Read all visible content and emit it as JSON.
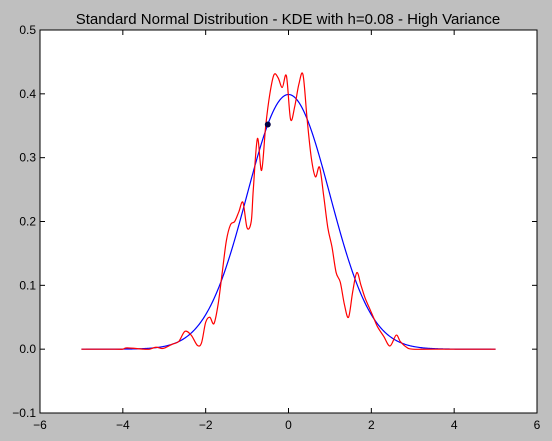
{
  "chart_data": {
    "type": "line",
    "title": "Standard Normal Distribution - KDE with h=0.08 - High Variance",
    "xlabel": "",
    "ylabel": "",
    "xlim": [
      -6,
      6
    ],
    "ylim": [
      -0.1,
      0.5
    ],
    "x_ticks": [
      -6,
      -4,
      -2,
      0,
      2,
      4,
      6
    ],
    "y_ticks": [
      -0.1,
      0.0,
      0.1,
      0.2,
      0.3,
      0.4,
      0.5
    ],
    "x_tick_labels": [
      "−6",
      "−4",
      "−2",
      "0",
      "2",
      "4",
      "6"
    ],
    "y_tick_labels": [
      "−0.1",
      "0.0",
      "0.1",
      "0.2",
      "0.3",
      "0.4",
      "0.5"
    ],
    "grid": false,
    "legend": "none",
    "series": [
      {
        "color": "#0000ff",
        "function": "normal_pdf",
        "mean": 0,
        "std": 1,
        "x_range": [
          -5,
          5
        ]
      },
      {
        "color": "#ff0000",
        "x": [
          -5,
          -4.2,
          -4,
          -3.9,
          -3.5,
          -3.35,
          -3.2,
          -3.05,
          -2.95,
          -2.8,
          -2.65,
          -2.5,
          -2.35,
          -2.2,
          -2.1,
          -2.0,
          -1.9,
          -1.8,
          -1.7,
          -1.6,
          -1.5,
          -1.4,
          -1.3,
          -1.2,
          -1.1,
          -1.0,
          -0.9,
          -0.85,
          -0.75,
          -0.65,
          -0.55,
          -0.45,
          -0.35,
          -0.25,
          -0.15,
          -0.05,
          0.05,
          0.15,
          0.25,
          0.35,
          0.45,
          0.55,
          0.65,
          0.75,
          0.85,
          0.95,
          1.05,
          1.15,
          1.25,
          1.35,
          1.45,
          1.55,
          1.65,
          1.75,
          1.85,
          1.95,
          2.05,
          2.15,
          2.3,
          2.45,
          2.6,
          2.7,
          2.85,
          3.0,
          3.5,
          5
        ],
        "y": [
          0,
          0,
          0,
          0.002,
          0,
          0,
          0.003,
          0.001,
          0.003,
          0.008,
          0.012,
          0.028,
          0.022,
          0.006,
          0.01,
          0.042,
          0.05,
          0.04,
          0.07,
          0.12,
          0.17,
          0.195,
          0.2,
          0.215,
          0.23,
          0.19,
          0.2,
          0.25,
          0.33,
          0.28,
          0.35,
          0.4,
          0.43,
          0.425,
          0.41,
          0.428,
          0.36,
          0.38,
          0.415,
          0.43,
          0.36,
          0.3,
          0.27,
          0.285,
          0.24,
          0.19,
          0.16,
          0.12,
          0.105,
          0.07,
          0.05,
          0.09,
          0.12,
          0.1,
          0.08,
          0.065,
          0.05,
          0.035,
          0.02,
          0.005,
          0.022,
          0.012,
          0.003,
          0,
          0,
          0
        ]
      }
    ],
    "marker": {
      "x": -0.5,
      "y": 0.352,
      "color": "#000044"
    }
  }
}
